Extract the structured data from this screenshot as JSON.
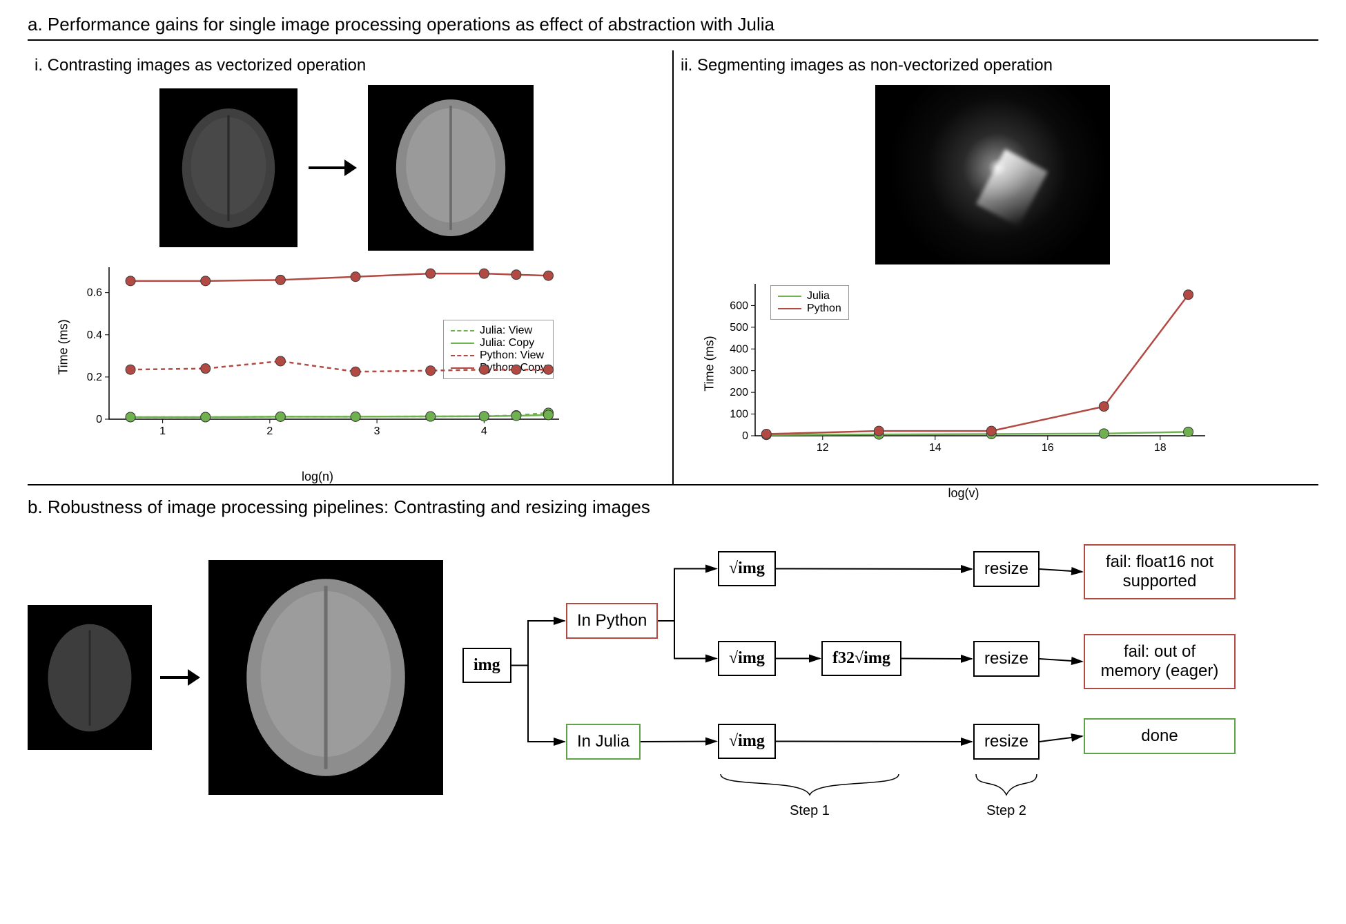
{
  "panelA": {
    "title": "a. Performance gains for single image processing operations as effect of abstraction with Julia",
    "left": {
      "title": "i. Contrasting images as vectorized operation",
      "chart": {
        "type": "line",
        "xlabel": "log(n)",
        "ylabel": "Time (ms)",
        "xlim": [
          0.5,
          4.7
        ],
        "ylim": [
          0,
          0.72
        ],
        "xticks": [
          1,
          2,
          3,
          4
        ],
        "yticks": [
          0.0,
          0.2,
          0.4,
          0.6
        ],
        "legend_pos": "right-middle",
        "series": [
          {
            "name": "Julia: View",
            "color": "#6fb04f",
            "dash": "6,5",
            "marker": "circle",
            "x": [
              0.7,
              1.4,
              2.1,
              2.8,
              3.5,
              4.0,
              4.3,
              4.6
            ],
            "y": [
              0.01,
              0.01,
              0.012,
              0.012,
              0.013,
              0.014,
              0.018,
              0.03
            ]
          },
          {
            "name": "Julia: Copy",
            "color": "#6fb04f",
            "dash": "none",
            "marker": "circle",
            "x": [
              0.7,
              1.4,
              2.1,
              2.8,
              3.5,
              4.0,
              4.3,
              4.6
            ],
            "y": [
              0.01,
              0.01,
              0.012,
              0.012,
              0.013,
              0.014,
              0.016,
              0.02
            ]
          },
          {
            "name": "Python: View",
            "color": "#b24a43",
            "dash": "6,5",
            "marker": "circle",
            "x": [
              0.7,
              1.4,
              2.1,
              2.8,
              3.5,
              4.0,
              4.3,
              4.6
            ],
            "y": [
              0.235,
              0.24,
              0.275,
              0.225,
              0.23,
              0.235,
              0.235,
              0.235
            ]
          },
          {
            "name": "Python: Copy",
            "color": "#b24a43",
            "dash": "none",
            "marker": "circle",
            "x": [
              0.7,
              1.4,
              2.1,
              2.8,
              3.5,
              4.0,
              4.3,
              4.6
            ],
            "y": [
              0.655,
              0.655,
              0.66,
              0.675,
              0.69,
              0.69,
              0.685,
              0.68
            ]
          }
        ],
        "marker_size": 7,
        "line_width": 2.5,
        "font_size_ticks": 16,
        "font_size_labels": 18
      }
    },
    "right": {
      "title": "ii. Segmenting images as non-vectorized operation",
      "chart": {
        "type": "line",
        "xlabel": "log(v)",
        "ylabel": "Time (ms)",
        "xlim": [
          10.8,
          18.8
        ],
        "ylim": [
          0,
          700
        ],
        "xticks": [
          12,
          14,
          16,
          18
        ],
        "yticks": [
          0,
          100,
          200,
          300,
          400,
          500,
          600
        ],
        "legend_pos": "top-left",
        "series": [
          {
            "name": "Julia",
            "color": "#6fb04f",
            "dash": "none",
            "marker": "circle",
            "x": [
              11,
              13,
              15,
              17,
              18.5
            ],
            "y": [
              4,
              6,
              8,
              10,
              18
            ]
          },
          {
            "name": "Python",
            "color": "#b24a43",
            "dash": "none",
            "marker": "circle",
            "x": [
              11,
              13,
              15,
              17,
              18.5
            ],
            "y": [
              8,
              22,
              22,
              135,
              650
            ]
          }
        ],
        "marker_size": 7,
        "line_width": 2.5,
        "font_size_ticks": 16,
        "font_size_labels": 18
      }
    }
  },
  "panelB": {
    "title": "b. Robustness of image processing pipelines: Contrasting and resizing images",
    "nodes": {
      "img": "img",
      "in_python": "In Python",
      "in_julia": "In Julia",
      "sqrt_img": "√img",
      "f32": "f32√img",
      "resize": "resize",
      "fail_float16": "fail: float16 not supported",
      "fail_oom": "fail: out of memory (eager)",
      "done": "done"
    },
    "steps": {
      "step1": "Step 1",
      "step2": "Step 2"
    },
    "colors": {
      "red": "#b24a43",
      "green": "#5ea34a",
      "black": "#000000"
    },
    "node_border_width": 2,
    "font_size": 24
  },
  "brain_colors": {
    "dark_fill": "#4a4a4a",
    "light_fill": "#8f8f8f",
    "bg": "#000000"
  }
}
